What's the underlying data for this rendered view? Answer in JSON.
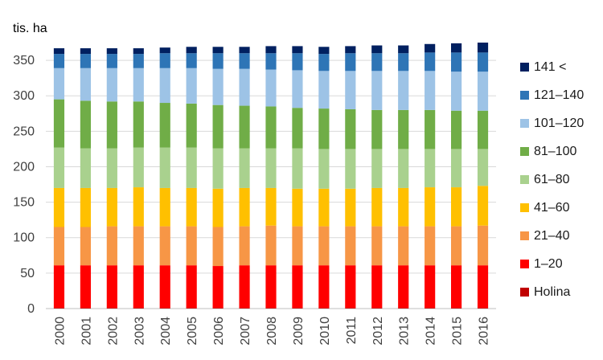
{
  "chart_data": {
    "type": "bar",
    "stacked": true,
    "ylabel": "tis. ha",
    "ylim": [
      0,
      375
    ],
    "yticks": [
      0,
      50,
      100,
      150,
      200,
      250,
      300,
      350
    ],
    "grid": true,
    "legend_position": "right",
    "categories": [
      "2000",
      "2001",
      "2002",
      "2003",
      "2004",
      "2005",
      "2006",
      "2007",
      "2008",
      "2009",
      "2010",
      "2011",
      "2012",
      "2013",
      "2014",
      "2015",
      "2016"
    ],
    "series": [
      {
        "name": "Holina",
        "color": "#c00000",
        "values": [
          1,
          1,
          1,
          1,
          1,
          1,
          1,
          1,
          1,
          1,
          1,
          1,
          1,
          1,
          1,
          1,
          1
        ]
      },
      {
        "name": "1–20",
        "color": "#ff0000",
        "values": [
          60,
          60,
          60,
          60,
          60,
          60,
          59,
          60,
          60,
          60,
          60,
          60,
          60,
          60,
          60,
          60,
          60
        ]
      },
      {
        "name": "21–40",
        "color": "#f79646",
        "values": [
          54,
          54,
          55,
          55,
          55,
          55,
          55,
          55,
          56,
          55,
          55,
          55,
          55,
          55,
          55,
          55,
          56
        ]
      },
      {
        "name": "41–60",
        "color": "#ffc000",
        "values": [
          55,
          55,
          54,
          55,
          54,
          54,
          54,
          54,
          53,
          53,
          53,
          53,
          54,
          54,
          55,
          55,
          56
        ]
      },
      {
        "name": "61–80",
        "color": "#a9d18e",
        "values": [
          57,
          56,
          56,
          56,
          57,
          57,
          57,
          56,
          56,
          57,
          56,
          56,
          55,
          55,
          54,
          54,
          52
        ]
      },
      {
        "name": "81–100",
        "color": "#70ad47",
        "values": [
          68,
          67,
          66,
          65,
          63,
          62,
          61,
          60,
          59,
          57,
          57,
          56,
          55,
          55,
          55,
          54,
          54
        ]
      },
      {
        "name": "101–120",
        "color": "#9dc3e6",
        "values": [
          44,
          46,
          47,
          47,
          49,
          50,
          51,
          52,
          52,
          53,
          53,
          54,
          55,
          55,
          55,
          55,
          55
        ]
      },
      {
        "name": "121–140",
        "color": "#2e75b6",
        "values": [
          20,
          20,
          20,
          20,
          21,
          21,
          22,
          22,
          23,
          24,
          24,
          25,
          25,
          25,
          26,
          27,
          27
        ]
      },
      {
        "name": "141 <",
        "color": "#002060",
        "values": [
          8,
          8,
          8,
          8,
          8,
          9,
          9,
          9,
          10,
          10,
          10,
          10,
          11,
          11,
          12,
          13,
          14
        ]
      }
    ]
  }
}
